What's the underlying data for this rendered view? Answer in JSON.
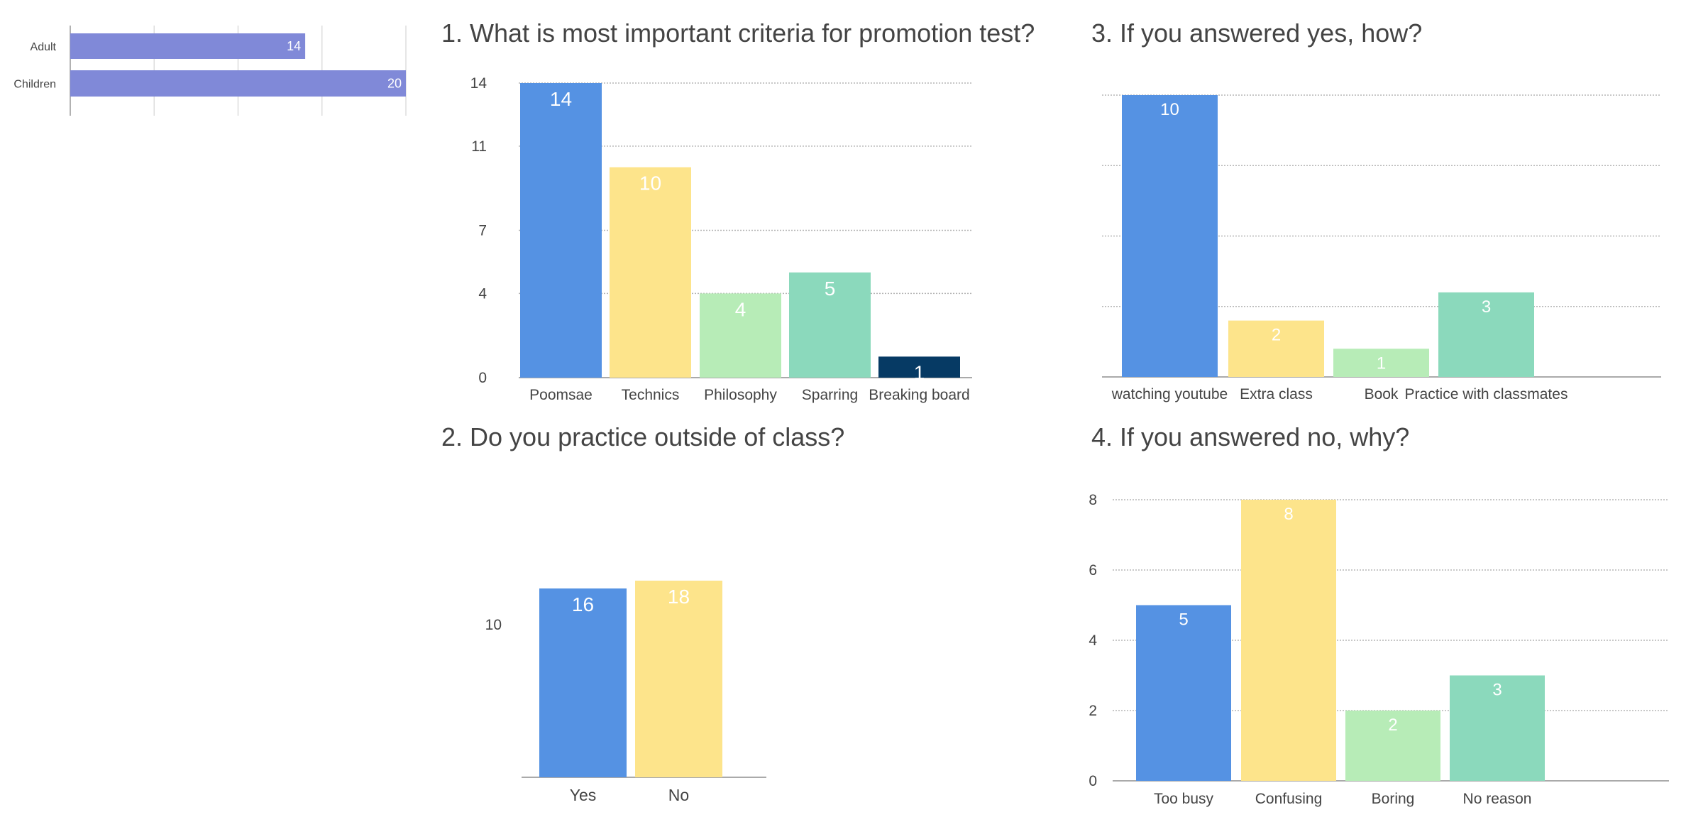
{
  "colors": {
    "blue": "#5592e3",
    "yellow": "#fde48b",
    "lightgreen": "#b7ecb7",
    "teal": "#8bd9bc",
    "navy": "#063a64",
    "purple": "#8089d8",
    "grid": "#b5b5b5",
    "axis": "#aaaaaa",
    "text": "#444444",
    "label_light": "#ffffff"
  },
  "chart_data": [
    {
      "id": "group",
      "type": "bar",
      "orientation": "horizontal",
      "title": "",
      "categories": [
        "Adult",
        "Children"
      ],
      "values": [
        14,
        20
      ],
      "xlim": [
        0,
        20
      ],
      "grid": true,
      "bar_color": "purple"
    },
    {
      "id": "q1",
      "type": "bar",
      "title": "1. What is most important criteria for promotion test?",
      "categories": [
        "Poomsae",
        "Technics",
        "Philosophy",
        "Sparring",
        "Breaking board"
      ],
      "values": [
        14,
        10,
        4,
        5,
        1
      ],
      "bar_colors": [
        "blue",
        "yellow",
        "lightgreen",
        "teal",
        "navy"
      ],
      "yticks": [
        "0",
        "4",
        "7",
        "11",
        "14"
      ],
      "ylim": [
        0,
        14
      ],
      "grid": true
    },
    {
      "id": "q3",
      "type": "bar",
      "title": "3. If you answered yes, how?",
      "categories": [
        "watching youtube",
        "Extra class",
        "Book",
        "Practice with classmates"
      ],
      "values": [
        10,
        2,
        1,
        3
      ],
      "bar_colors": [
        "blue",
        "yellow",
        "lightgreen",
        "teal"
      ],
      "yticks": [],
      "ylim": [
        0,
        10
      ],
      "grid": true
    },
    {
      "id": "q2",
      "type": "bar",
      "title": "2. Do you practice outside of class?",
      "categories": [
        "Yes",
        "No"
      ],
      "values": [
        16,
        18
      ],
      "bar_colors": [
        "blue",
        "yellow"
      ],
      "yticks": [
        "10"
      ],
      "grid": false
    },
    {
      "id": "q4",
      "type": "bar",
      "title": "4. If you answered no, why?",
      "categories": [
        "Too busy",
        "Confusing",
        "Boring",
        "No reason"
      ],
      "values": [
        5,
        8,
        2,
        3
      ],
      "bar_colors": [
        "blue",
        "yellow",
        "lightgreen",
        "teal"
      ],
      "yticks": [
        "0",
        "2",
        "4",
        "6",
        "8"
      ],
      "ylim": [
        0,
        8
      ],
      "grid": true
    }
  ]
}
